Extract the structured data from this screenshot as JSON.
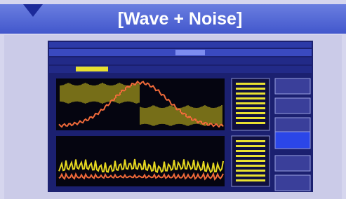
{
  "header": {
    "title": "[Wave + Noise]"
  }
}
